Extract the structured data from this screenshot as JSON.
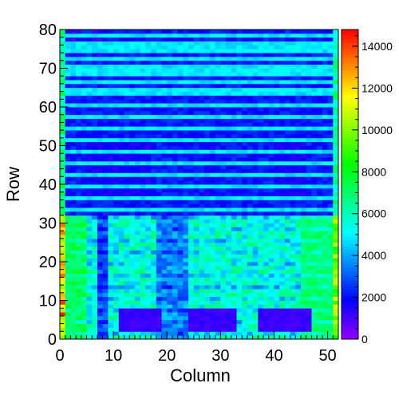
{
  "chart_data": {
    "type": "heatmap",
    "title": "",
    "xlabel": "Column",
    "ylabel": "Row",
    "xlim": [
      0,
      52
    ],
    "ylim": [
      0,
      80
    ],
    "x_ticks": [
      "0",
      "10",
      "20",
      "30",
      "40",
      "50"
    ],
    "y_ticks": [
      "0",
      "10",
      "20",
      "30",
      "40",
      "50",
      "60",
      "70",
      "80"
    ],
    "z_range": [
      0,
      14800
    ],
    "z_ticks": [
      "0",
      "2000",
      "4000",
      "6000",
      "8000",
      "10000",
      "12000",
      "14000"
    ],
    "colormap": "rainbow (violet-blue-cyan-green-yellow-red)",
    "grid": false,
    "legend": "colorbar at right",
    "description_of_values": {
      "rows_0_to_32": "mostly 3500-7500 (cyan to green), with three rectangular low regions (~1200, violet) near rows 3-8 at columns 11-18, 24-32, 37-46",
      "rows_32_to_80": "mostly 1500-3200 (blue), with alternating bright horizontal stripe rows near 5000 (cyan)",
      "edge_columns": "column 0 and column 51 show high values (up to ~14000 at low rows on column 0)"
    }
  }
}
